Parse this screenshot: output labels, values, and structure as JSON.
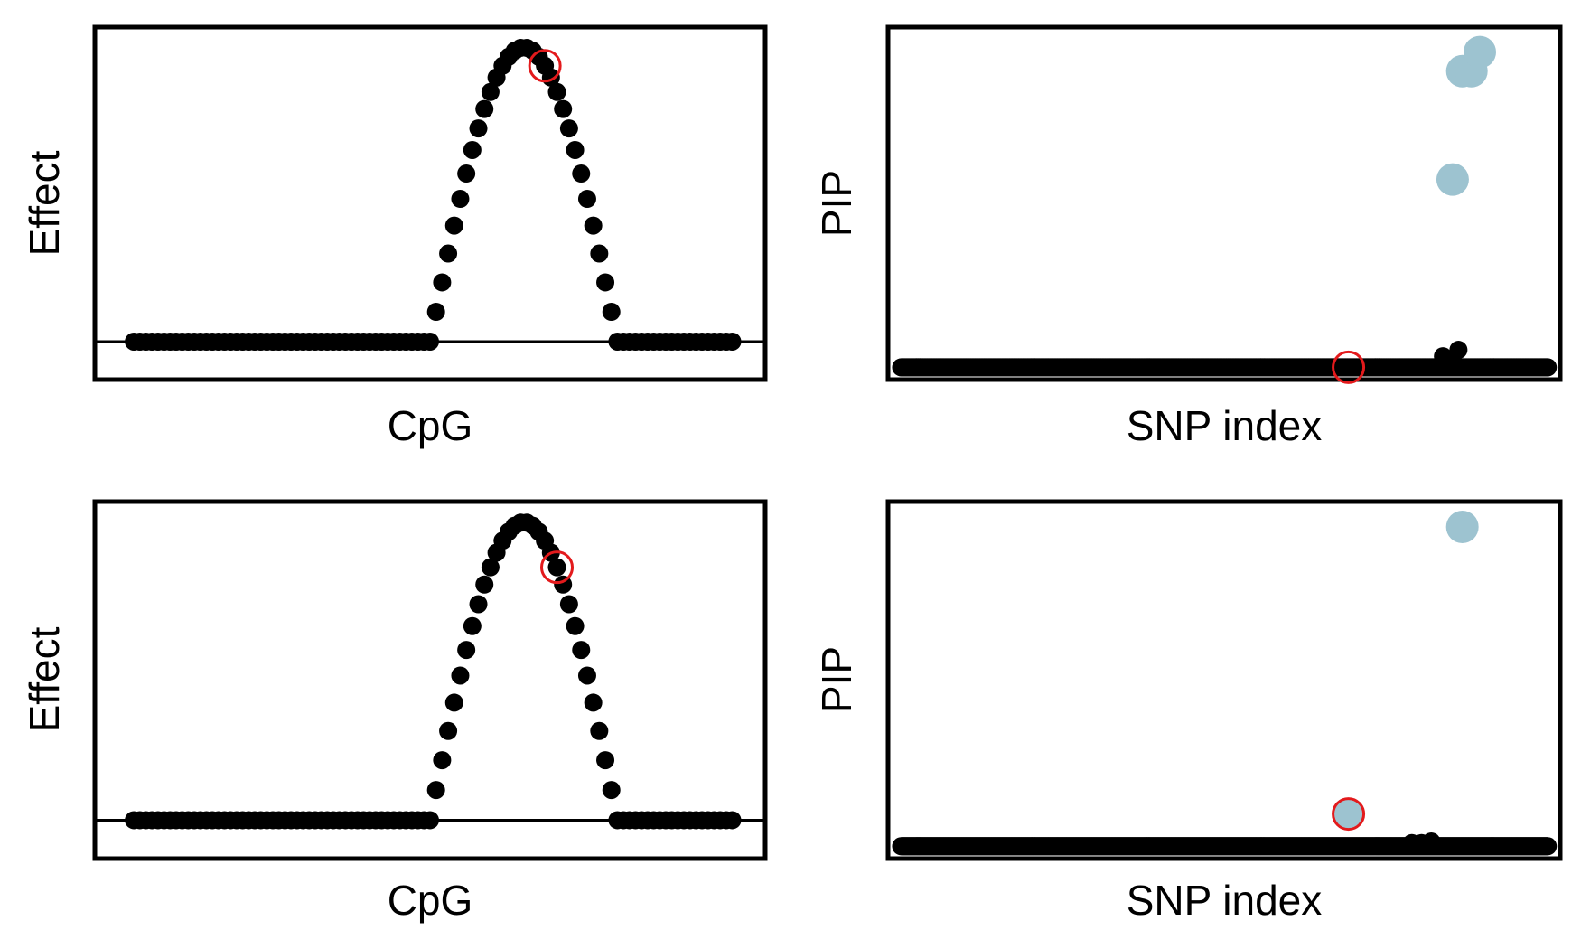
{
  "colors": {
    "point": "#000000",
    "pip_highlight": "#9dc3d0",
    "marker_ring": "#e31a1c",
    "frame": "#000000"
  },
  "chart_data": [
    {
      "id": "effect-top",
      "type": "scatter",
      "xlabel": "CpG",
      "ylabel": "Effect",
      "xlim": [
        -5,
        105
      ],
      "ylim": [
        -0.12,
        1.06
      ],
      "zero_line": 0,
      "ticks": "none",
      "grid": false,
      "curve": {
        "n": 100,
        "start": 50,
        "end": 81,
        "peak_x": 67,
        "peak_y": 1.0
      },
      "highlight_x": 69
    },
    {
      "id": "pip-top",
      "type": "scatter",
      "xlabel": "SNP index",
      "ylabel": "PIP",
      "xlim": [
        -15,
        1015
      ],
      "ylim": [
        -0.03,
        1.06
      ],
      "ticks": "none",
      "grid": false,
      "n_points": 1000,
      "background_pip": 0,
      "highlighted_points": [
        {
          "x": 853,
          "pip": 0.59
        },
        {
          "x": 868,
          "pip": 0.93
        },
        {
          "x": 882,
          "pip": 0.93
        },
        {
          "x": 895,
          "pip": 0.99
        }
      ],
      "small_points": [
        {
          "x": 838,
          "pip": 0.035
        },
        {
          "x": 845,
          "pip": 0.025
        },
        {
          "x": 862,
          "pip": 0.055
        }
      ],
      "marker_index": 692,
      "marker_pip": 0
    },
    {
      "id": "effect-bottom",
      "type": "scatter",
      "xlabel": "CpG",
      "ylabel": "Effect",
      "xlim": [
        -5,
        105
      ],
      "ylim": [
        -0.12,
        1.06
      ],
      "zero_line": 0,
      "ticks": "none",
      "grid": false,
      "curve": {
        "n": 100,
        "start": 50,
        "end": 81,
        "peak_x": 67,
        "peak_y": 1.0
      },
      "highlight_x": 71
    },
    {
      "id": "pip-bottom",
      "type": "scatter",
      "xlabel": "SNP index",
      "ylabel": "PIP",
      "xlim": [
        -15,
        1015
      ],
      "ylim": [
        -0.03,
        1.06
      ],
      "ticks": "none",
      "grid": false,
      "n_points": 1000,
      "background_pip": 0,
      "highlighted_points": [
        {
          "x": 692,
          "pip": 0.1
        },
        {
          "x": 868,
          "pip": 0.99
        }
      ],
      "small_points": [
        {
          "x": 790,
          "pip": 0.01
        },
        {
          "x": 805,
          "pip": 0.01
        },
        {
          "x": 820,
          "pip": 0.015
        }
      ],
      "marker_index": 692,
      "marker_pip": 0.1
    }
  ]
}
